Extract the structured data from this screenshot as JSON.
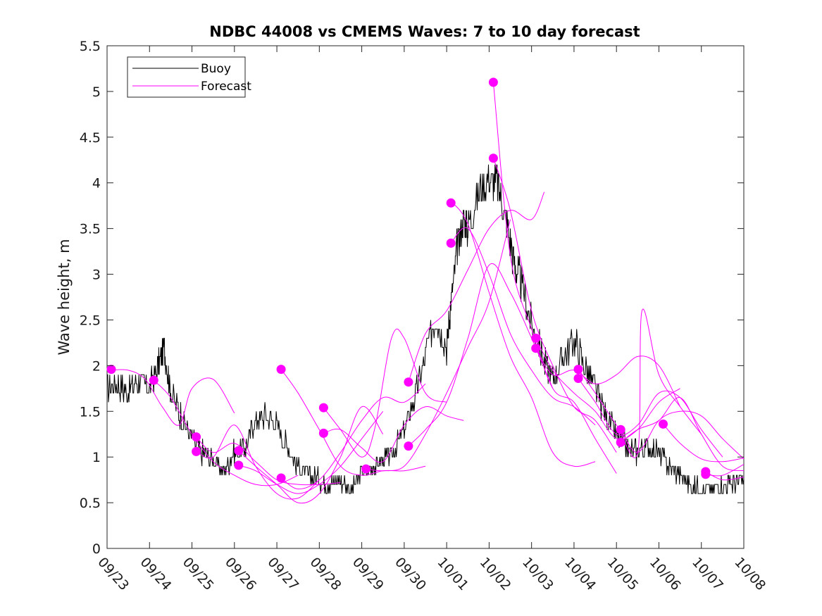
{
  "chart_data": {
    "type": "line",
    "title": "NDBC 44008 vs CMEMS Waves: 7 to 10 day forecast",
    "xlabel": "",
    "ylabel": "Wave height, m",
    "xlim": [
      0,
      15
    ],
    "ylim": [
      0,
      5.5
    ],
    "yticks": [
      0,
      0.5,
      1,
      1.5,
      2,
      2.5,
      3,
      3.5,
      4,
      4.5,
      5,
      5.5
    ],
    "ytick_labels": [
      "0",
      "0.5",
      "1",
      "1.5",
      "2",
      "2.5",
      "3",
      "3.5",
      "4",
      "4.5",
      "5",
      "5.5"
    ],
    "xtick_labels": [
      "09/23",
      "09/24",
      "09/25",
      "09/26",
      "09/27",
      "09/28",
      "09/29",
      "09/30",
      "10/01",
      "10/02",
      "10/03",
      "10/04",
      "10/05",
      "10/06",
      "10/07",
      "10/08"
    ],
    "grid": false,
    "legend": {
      "location": "top-left",
      "entries": [
        "Buoy",
        "Forecast"
      ]
    },
    "colors": {
      "buoy": "#000000",
      "forecast": "#ff00ff"
    },
    "buoy": {
      "name": "Buoy",
      "x": [
        0,
        0.25,
        0.5,
        0.75,
        1,
        1.2,
        1.35,
        1.5,
        1.75,
        2,
        2.25,
        2.5,
        2.75,
        3,
        3.25,
        3.5,
        3.75,
        4,
        4.25,
        4.5,
        4.75,
        5,
        5.25,
        5.5,
        5.75,
        6,
        6.25,
        6.5,
        6.75,
        7,
        7.25,
        7.5,
        7.75,
        8,
        8.1,
        8.25,
        8.4,
        8.5,
        8.75,
        9,
        9.2,
        9.4,
        9.6,
        9.75,
        10,
        10.25,
        10.5,
        10.75,
        11,
        11.25,
        11.5,
        11.75,
        12,
        12.25,
        12.5,
        12.75,
        13,
        13.25,
        13.5,
        13.75,
        14,
        14.25,
        14.5,
        14.75,
        15
      ],
      "y": [
        1.75,
        1.8,
        1.7,
        1.85,
        1.75,
        2.0,
        2.2,
        1.7,
        1.45,
        1.2,
        1.05,
        0.95,
        0.85,
        1.05,
        1.1,
        1.4,
        1.45,
        1.35,
        1.1,
        0.9,
        0.8,
        0.75,
        0.7,
        0.75,
        0.65,
        0.85,
        0.9,
        0.95,
        1.05,
        1.3,
        1.65,
        2.1,
        2.55,
        2.2,
        2.7,
        3.3,
        3.6,
        3.5,
        3.9,
        4.05,
        4.0,
        3.6,
        3.1,
        2.9,
        2.45,
        2.1,
        1.85,
        2.1,
        2.3,
        2.0,
        1.75,
        1.45,
        1.25,
        1.1,
        1.05,
        1.1,
        1.05,
        0.9,
        0.8,
        0.7,
        0.65,
        0.65,
        0.7,
        0.72,
        0.75
      ]
    },
    "forecasts": [
      {
        "name": "Forecast",
        "x": [
          0.1,
          0.5,
          0.9,
          1.3,
          1.7,
          2.0,
          2.5,
          3.0
        ],
        "y": [
          1.95,
          1.95,
          1.85,
          1.55,
          1.35,
          1.75,
          1.85,
          1.48
        ]
      },
      {
        "name": "Forecast",
        "x": [
          1.1,
          1.5,
          2.0,
          2.5,
          3.0,
          3.5,
          4.0,
          4.5
        ],
        "y": [
          1.84,
          1.65,
          1.25,
          0.95,
          0.8,
          0.7,
          0.7,
          0.8
        ]
      },
      {
        "name": "Forecast",
        "x": [
          2.1,
          2.5,
          3.0,
          3.5,
          4.0,
          4.5,
          5.0,
          5.5
        ],
        "y": [
          1.22,
          1.05,
          1.15,
          0.95,
          0.75,
          0.7,
          0.7,
          0.72
        ]
      },
      {
        "name": "Forecast",
        "x": [
          2.1,
          2.5,
          3.0,
          3.5,
          4.0,
          4.5,
          5.0
        ],
        "y": [
          1.06,
          1.0,
          1.35,
          0.9,
          0.6,
          0.55,
          0.75
        ]
      },
      {
        "name": "Forecast",
        "x": [
          3.1,
          3.5,
          4.0,
          4.5,
          5.0,
          5.5,
          6.0,
          6.5
        ],
        "y": [
          1.07,
          0.9,
          0.7,
          0.5,
          0.6,
          1.0,
          1.55,
          1.25
        ]
      },
      {
        "name": "Forecast",
        "x": [
          3.1,
          3.5,
          4.0,
          4.5,
          5.0,
          5.5,
          6.0,
          6.5
        ],
        "y": [
          0.91,
          0.85,
          0.7,
          0.6,
          0.7,
          0.9,
          1.2,
          1.5
        ]
      },
      {
        "name": "Forecast",
        "x": [
          4.1,
          4.5,
          5.0,
          5.5,
          6.0,
          6.5,
          7.0,
          7.5
        ],
        "y": [
          1.96,
          1.7,
          1.3,
          0.9,
          0.8,
          0.85,
          0.85,
          0.9
        ]
      },
      {
        "name": "Forecast",
        "x": [
          4.1,
          4.5,
          5.0,
          5.5,
          6.0,
          6.5,
          7.0,
          7.5
        ],
        "y": [
          0.77,
          0.65,
          0.75,
          1.05,
          1.4,
          1.65,
          1.6,
          1.8
        ]
      },
      {
        "name": "Forecast",
        "x": [
          5.1,
          5.5,
          6.0,
          6.3,
          6.7,
          7.0,
          7.5,
          8.0
        ],
        "y": [
          1.54,
          1.3,
          1.0,
          1.3,
          2.3,
          2.3,
          1.7,
          1.6
        ]
      },
      {
        "name": "Forecast",
        "x": [
          5.1,
          5.5,
          6.0,
          6.5,
          7.0,
          7.5,
          8.0,
          8.4
        ],
        "y": [
          1.26,
          1.3,
          1.1,
          0.95,
          1.35,
          1.55,
          1.45,
          1.4
        ]
      },
      {
        "name": "Forecast",
        "x": [
          6.1,
          6.5,
          7.0,
          7.5,
          8.0,
          8.5,
          9.0,
          9.5
        ],
        "y": [
          0.87,
          0.85,
          0.9,
          1.25,
          1.7,
          2.2,
          2.7,
          3.6
        ]
      },
      {
        "name": "Forecast",
        "x": [
          7.1,
          7.5,
          8.0,
          8.5,
          9.0,
          9.5,
          10.0,
          10.3
        ],
        "y": [
          1.82,
          2.35,
          2.6,
          3.05,
          3.5,
          3.7,
          3.6,
          3.9
        ]
      },
      {
        "name": "Forecast",
        "x": [
          7.1,
          7.5,
          8.0,
          8.5,
          9.0,
          9.5,
          10.0,
          10.5
        ],
        "y": [
          1.12,
          1.3,
          1.6,
          2.3,
          3.1,
          2.8,
          2.3,
          1.75
        ]
      },
      {
        "name": "Forecast",
        "x": [
          8.1,
          8.5,
          9.0,
          9.5,
          10.0,
          10.5,
          11.0,
          11.5
        ],
        "y": [
          3.8,
          3.55,
          2.8,
          2.1,
          1.65,
          1.05,
          0.9,
          0.95
        ]
      },
      {
        "name": "Forecast",
        "x": [
          8.1,
          8.5,
          9.0,
          9.5,
          10.0,
          10.5,
          11.0,
          11.5
        ],
        "y": [
          3.34,
          3.5,
          3.0,
          2.35,
          1.95,
          1.65,
          1.55,
          1.35
        ]
      },
      {
        "name": "Forecast",
        "x": [
          9.1,
          9.5,
          10.0,
          10.5,
          11.0,
          11.5,
          12.0
        ],
        "y": [
          5.1,
          3.2,
          2.4,
          1.75,
          1.6,
          1.2,
          0.82
        ]
      },
      {
        "name": "Forecast",
        "x": [
          9.1,
          9.5,
          10.0,
          10.5,
          11.0,
          11.5,
          12.0
        ],
        "y": [
          4.27,
          3.7,
          2.6,
          2.0,
          1.55,
          1.4,
          1.05
        ]
      },
      {
        "name": "Forecast",
        "x": [
          10.1,
          10.5,
          11.0,
          11.5,
          12.0,
          12.5,
          13.0,
          13.5
        ],
        "y": [
          2.3,
          1.95,
          1.7,
          1.5,
          1.2,
          1.3,
          1.6,
          1.75
        ]
      },
      {
        "name": "Forecast",
        "x": [
          10.1,
          10.5,
          11.0,
          11.5,
          12.0,
          12.5,
          13.0,
          13.5
        ],
        "y": [
          2.19,
          1.9,
          1.95,
          1.8,
          1.9,
          2.1,
          2.0,
          1.55
        ]
      },
      {
        "name": "Forecast",
        "x": [
          11.1,
          11.5,
          12.0,
          12.5,
          12.6,
          13.0,
          13.5,
          14.0
        ],
        "y": [
          1.96,
          1.7,
          1.35,
          1.05,
          2.6,
          1.9,
          1.55,
          1.25
        ]
      },
      {
        "name": "Forecast",
        "x": [
          11.1,
          11.5,
          12.0,
          12.5,
          13.0,
          13.5,
          14.0,
          14.5
        ],
        "y": [
          1.86,
          1.6,
          1.25,
          1.35,
          1.7,
          1.65,
          1.3,
          1.0
        ]
      },
      {
        "name": "Forecast",
        "x": [
          12.1,
          12.5,
          13.0,
          13.5,
          14.0,
          14.5,
          15.0
        ],
        "y": [
          1.3,
          1.05,
          1.4,
          1.5,
          1.45,
          1.2,
          0.98
        ]
      },
      {
        "name": "Forecast",
        "x": [
          12.1,
          12.5,
          13.0,
          13.5,
          14.0,
          14.5,
          15.0
        ],
        "y": [
          1.16,
          1.3,
          1.4,
          1.65,
          1.25,
          0.9,
          0.85
        ]
      },
      {
        "name": "Forecast",
        "x": [
          13.1,
          13.5,
          14.0,
          14.5,
          15.0
        ],
        "y": [
          1.36,
          1.15,
          0.98,
          0.95,
          0.99
        ]
      },
      {
        "name": "Forecast",
        "x": [
          14.1,
          14.5,
          15.0
        ],
        "y": [
          0.84,
          0.75,
          0.78
        ]
      },
      {
        "name": "Forecast",
        "x": [
          14.1,
          14.5,
          15.0
        ],
        "y": [
          0.81,
          0.8,
          0.92
        ]
      }
    ],
    "markers": [
      {
        "x": 0.1,
        "y": 1.96
      },
      {
        "x": 1.1,
        "y": 1.84
      },
      {
        "x": 2.1,
        "y": 1.22
      },
      {
        "x": 2.1,
        "y": 1.06
      },
      {
        "x": 3.1,
        "y": 1.07
      },
      {
        "x": 3.1,
        "y": 0.91
      },
      {
        "x": 4.1,
        "y": 1.96
      },
      {
        "x": 4.1,
        "y": 0.77
      },
      {
        "x": 5.1,
        "y": 1.54
      },
      {
        "x": 5.1,
        "y": 1.26
      },
      {
        "x": 6.1,
        "y": 0.87
      },
      {
        "x": 7.1,
        "y": 1.82
      },
      {
        "x": 7.1,
        "y": 1.12
      },
      {
        "x": 8.1,
        "y": 3.78
      },
      {
        "x": 8.1,
        "y": 3.34
      },
      {
        "x": 9.1,
        "y": 5.1
      },
      {
        "x": 9.1,
        "y": 4.27
      },
      {
        "x": 10.1,
        "y": 2.3
      },
      {
        "x": 10.1,
        "y": 2.19
      },
      {
        "x": 11.1,
        "y": 1.96
      },
      {
        "x": 11.1,
        "y": 1.86
      },
      {
        "x": 12.1,
        "y": 1.3
      },
      {
        "x": 12.1,
        "y": 1.16
      },
      {
        "x": 13.1,
        "y": 1.36
      },
      {
        "x": 14.1,
        "y": 0.84
      },
      {
        "x": 14.1,
        "y": 0.81
      }
    ]
  }
}
